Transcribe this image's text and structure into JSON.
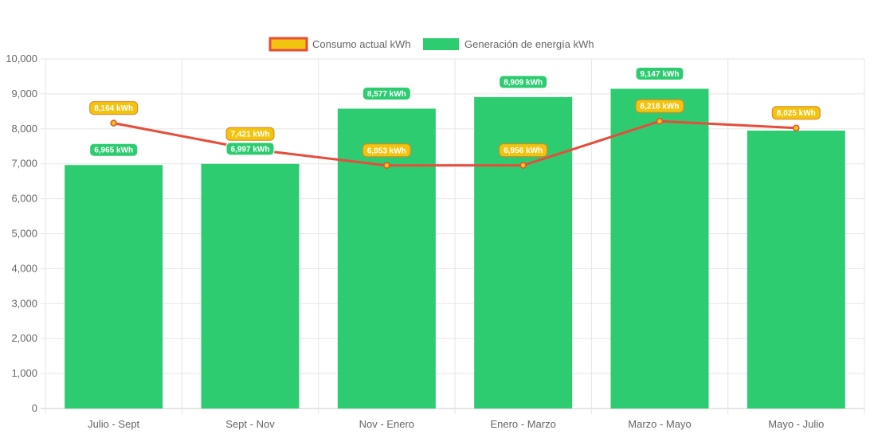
{
  "colors": {
    "generation": "#2ecc71",
    "consumption_line": "#e74c3c",
    "consumption_point": "#f1c40f",
    "grid": "#e5e5e5",
    "axis_text": "#666666"
  },
  "chart_data": {
    "type": "bar",
    "title": "",
    "xlabel": "",
    "ylabel": "",
    "categories": [
      "Julio - Sept",
      "Sept - Nov",
      "Nov - Enero",
      "Enero - Marzo",
      "Marzo - Mayo",
      "Mayo - Julio"
    ],
    "ylim": [
      0,
      10000
    ],
    "yticks": [
      0,
      1000,
      2000,
      3000,
      4000,
      5000,
      6000,
      7000,
      8000,
      9000,
      10000
    ],
    "ytick_labels": [
      "0",
      "1,000",
      "2,000",
      "3,000",
      "4,000",
      "5,000",
      "6,000",
      "7,000",
      "8,000",
      "9,000",
      "10,000"
    ],
    "grid": true,
    "legend_position": "top-center",
    "series": [
      {
        "name": "Consumo actual kWh",
        "kind": "line",
        "values": [
          8164,
          7421,
          6953,
          6956,
          8218,
          8025
        ],
        "labels": [
          "8,164 kWh",
          "7,421 kWh",
          "6,953 kWh",
          "6,956 kWh",
          "8,218 kWh",
          "8,025 kWh"
        ]
      },
      {
        "name": "Generación de energía kWh",
        "kind": "bar",
        "values": [
          6965,
          6997,
          8577,
          8909,
          9147,
          7950
        ],
        "labels": [
          "6,965 kWh",
          "6,997 kWh",
          "8,577 kWh",
          "8,909 kWh",
          "9,147 kWh",
          ""
        ]
      }
    ]
  }
}
